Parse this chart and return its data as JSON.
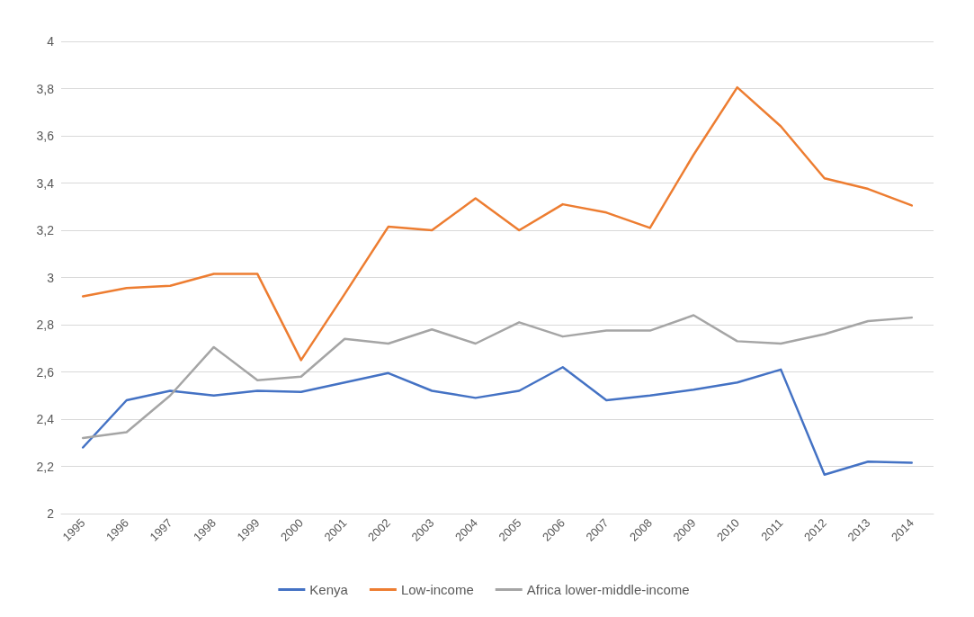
{
  "chart_data": {
    "type": "line",
    "categories": [
      "1995",
      "1996",
      "1997",
      "1998",
      "1999",
      "2000",
      "2001",
      "2002",
      "2003",
      "2004",
      "2005",
      "2006",
      "2007",
      "2008",
      "2009",
      "2010",
      "2011",
      "2012",
      "2013",
      "2014"
    ],
    "series": [
      {
        "name": "Kenya",
        "color": "#4472c4",
        "values": [
          2.28,
          2.48,
          2.52,
          2.5,
          2.52,
          2.515,
          2.555,
          2.595,
          2.52,
          2.49,
          2.52,
          2.62,
          2.48,
          2.5,
          2.525,
          2.555,
          2.61,
          2.165,
          2.22,
          2.215
        ]
      },
      {
        "name": "Low-income",
        "color": "#ed7d31",
        "values": [
          2.92,
          2.955,
          2.965,
          3.015,
          3.015,
          2.65,
          2.93,
          3.215,
          3.2,
          3.335,
          3.2,
          3.31,
          3.275,
          3.21,
          3.52,
          3.805,
          3.64,
          3.42,
          3.375,
          3.305
        ]
      },
      {
        "name": "Africa lower-middle-income",
        "color": "#a5a5a5",
        "values": [
          2.32,
          2.345,
          2.5,
          2.705,
          2.565,
          2.58,
          2.74,
          2.72,
          2.78,
          2.72,
          2.81,
          2.75,
          2.775,
          2.775,
          2.84,
          2.73,
          2.72,
          2.76,
          2.815,
          2.83
        ]
      }
    ],
    "ylim": [
      2,
      4
    ],
    "yticks": [
      2,
      {
        "value": 2.2,
        "label": "2,2"
      },
      {
        "value": 2.4,
        "label": "2,4"
      },
      {
        "value": 2.6,
        "label": "2,6"
      },
      {
        "value": 2.8,
        "label": "2,8"
      },
      3,
      {
        "value": 3.2,
        "label": "3,2"
      },
      {
        "value": 3.4,
        "label": "3,4"
      },
      {
        "value": 3.6,
        "label": "3,6"
      },
      {
        "value": 3.8,
        "label": "3,8"
      },
      4
    ],
    "grid": "y",
    "legend": "bottom",
    "marker": "none",
    "line_style": "solid"
  }
}
